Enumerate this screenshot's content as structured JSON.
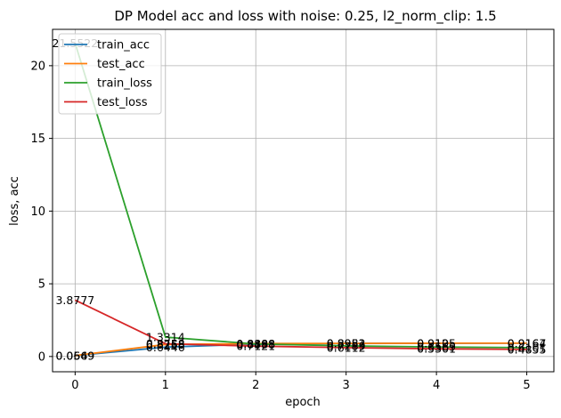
{
  "chart_data": {
    "type": "line",
    "title": "DP Model acc and loss with noise: 0.25, l2_norm_clip: 1.5",
    "xlabel": "epoch",
    "ylabel": "loss, acc",
    "x": [
      0,
      1,
      2,
      3,
      4,
      5
    ],
    "xlim": [
      -0.25,
      5.3
    ],
    "ylim": [
      -1.05,
      22.5
    ],
    "xticks": [
      "0",
      "1",
      "2",
      "3",
      "4",
      "5"
    ],
    "yticks": [
      0,
      5,
      10,
      15,
      20
    ],
    "grid": true,
    "legend_position": "top-left",
    "series": [
      {
        "name": "train_acc",
        "color": "#1f77b4",
        "values": [
          0.0569,
          0.6446,
          0.8488,
          0.8951,
          0.9105,
          0.9164
        ]
      },
      {
        "name": "test_acc",
        "color": "#ff7f0e",
        "values": [
          0.0649,
          0.8268,
          0.8888,
          0.8982,
          0.9125,
          0.9167
        ]
      },
      {
        "name": "train_loss",
        "color": "#2ca02c",
        "values": [
          21.5522,
          1.3314,
          0.8598,
          0.7289,
          0.6569,
          0.6101
        ]
      },
      {
        "name": "test_loss",
        "color": "#d62728",
        "values": [
          3.8777,
          0.8758,
          0.7121,
          0.6112,
          0.5301,
          0.4855
        ]
      }
    ],
    "labels": [
      {
        "x": 0,
        "y": 21.5522,
        "text": "21.5522"
      },
      {
        "x": 0,
        "y": 3.8777,
        "text": "3.8777"
      },
      {
        "x": 0,
        "y": 0.0649,
        "text": "0.0649"
      },
      {
        "x": 0,
        "y": 0.0569,
        "text": "0.0569"
      },
      {
        "x": 1,
        "y": 1.3314,
        "text": "1.3314"
      },
      {
        "x": 1,
        "y": 0.8758,
        "text": "0.8758"
      },
      {
        "x": 1,
        "y": 0.8268,
        "text": "0.8268"
      },
      {
        "x": 1,
        "y": 0.6446,
        "text": "0.6446"
      },
      {
        "x": 2,
        "y": 0.8888,
        "text": "0.8888"
      },
      {
        "x": 2,
        "y": 0.8598,
        "text": "0.8598"
      },
      {
        "x": 2,
        "y": 0.8488,
        "text": "0.8488"
      },
      {
        "x": 2,
        "y": 0.7121,
        "text": "0.7121"
      },
      {
        "x": 3,
        "y": 0.8982,
        "text": "0.8982"
      },
      {
        "x": 3,
        "y": 0.8951,
        "text": "0.8951"
      },
      {
        "x": 3,
        "y": 0.7289,
        "text": "0.7289"
      },
      {
        "x": 3,
        "y": 0.6112,
        "text": "0.6112"
      },
      {
        "x": 4,
        "y": 0.9125,
        "text": "0.9125"
      },
      {
        "x": 4,
        "y": 0.9105,
        "text": "0.9105"
      },
      {
        "x": 4,
        "y": 0.6569,
        "text": "0.6569"
      },
      {
        "x": 4,
        "y": 0.5301,
        "text": "0.5301"
      },
      {
        "x": 5,
        "y": 0.9167,
        "text": "0.9167"
      },
      {
        "x": 5,
        "y": 0.9164,
        "text": "0.9164"
      },
      {
        "x": 5,
        "y": 0.6101,
        "text": "0.6101"
      },
      {
        "x": 5,
        "y": 0.4855,
        "text": "0.4855"
      }
    ]
  }
}
